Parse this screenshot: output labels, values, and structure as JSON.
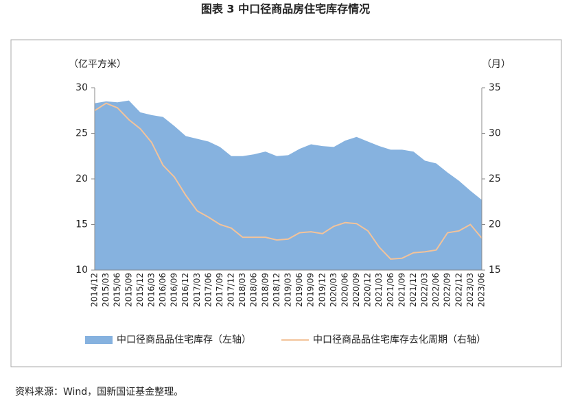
{
  "title": "图表 3  中口径商品房住宅库存情况",
  "source": "资料来源：Wind，国新国证基金整理。",
  "chart_data": {
    "type": "area-line",
    "y_label": "（亿平方米）",
    "y2_label": "（月）",
    "categories": [
      "2014/12",
      "2015/03",
      "2015/06",
      "2015/09",
      "2015/12",
      "2016/03",
      "2016/06",
      "2016/09",
      "2016/12",
      "2017/03",
      "2017/06",
      "2017/09",
      "2017/12",
      "2018/03",
      "2018/06",
      "2018/09",
      "2018/12",
      "2019/03",
      "2019/06",
      "2019/09",
      "2019/12",
      "2020/03",
      "2020/06",
      "2020/09",
      "2020/12",
      "2021/03",
      "2021/06",
      "2021/09",
      "2021/12",
      "2022/03",
      "2022/06",
      "2022/09",
      "2022/12",
      "2023/03",
      "2023/06"
    ],
    "series": [
      {
        "name": "中口径商品品住宅库存（左轴）",
        "color": "#86b2df",
        "axis": "y",
        "values": [
          28.3,
          28.5,
          28.4,
          28.6,
          27.3,
          27.0,
          26.8,
          25.8,
          24.7,
          24.4,
          24.1,
          23.5,
          22.5,
          22.5,
          22.7,
          23.0,
          22.5,
          22.6,
          23.3,
          23.8,
          23.6,
          23.5,
          24.2,
          24.6,
          24.1,
          23.6,
          23.2,
          23.2,
          23.0,
          22.0,
          21.7,
          20.7,
          19.8,
          18.7,
          17.7
        ]
      },
      {
        "name": "中口径商品品住宅库存去化周期（右轴）",
        "color": "#f3c39a",
        "axis": "y2",
        "values": [
          32.5,
          33.3,
          32.8,
          31.5,
          30.5,
          29.0,
          26.5,
          25.2,
          23.2,
          21.5,
          20.8,
          20.0,
          19.6,
          18.6,
          18.6,
          18.6,
          18.3,
          18.4,
          19.1,
          19.2,
          19.0,
          19.8,
          20.2,
          20.1,
          19.3,
          17.5,
          16.2,
          16.3,
          16.9,
          17.0,
          17.2,
          19.1,
          19.3,
          20.0,
          18.5
        ]
      }
    ],
    "ylim": [
      10,
      30
    ],
    "yticks": [
      10,
      15,
      20,
      25,
      30
    ],
    "y2lim": [
      15,
      35
    ],
    "y2ticks": [
      15,
      20,
      25,
      30,
      35
    ]
  }
}
